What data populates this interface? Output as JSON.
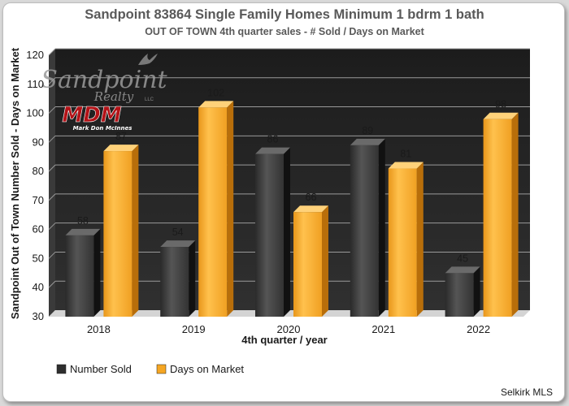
{
  "chart_data": {
    "type": "bar",
    "title": "Sandpoint 83864 Single Family Homes Minimum 1 bdrm 1 bath",
    "subtitle": "OUT OF TOWN 4th quarter sales - # Sold / Days on Market",
    "xlabel": "4th quarter / year",
    "ylabel": "Sandpoint Out of Town Number Sold - Days on Market",
    "categories": [
      "2018",
      "2019",
      "2020",
      "2021",
      "2022"
    ],
    "series": [
      {
        "name": "Number Sold",
        "values": [
          58,
          54,
          86,
          89,
          45
        ],
        "color": "#3a3a3a"
      },
      {
        "name": "Days on Market",
        "values": [
          87,
          102,
          66,
          81,
          98
        ],
        "color": "#f5a623"
      }
    ],
    "ylim": [
      30,
      120
    ],
    "yticks": [
      30,
      40,
      50,
      60,
      70,
      80,
      90,
      100,
      110,
      120
    ],
    "grid": true,
    "legend": "bottom-left",
    "source": "Selkirk MLS"
  },
  "watermark": {
    "logo_text": "Sandpoint",
    "logo_sub": "Realty",
    "logo_tm": "LLC",
    "mdm": "MDM",
    "mdm_name": "Mark Don McInnes"
  },
  "colors": {
    "plot_bg": "#242424",
    "wall_side": "#3a3a3a",
    "floor": "#d4d4d4",
    "gridline": "#9a9a9a",
    "accent": "#f5a623"
  }
}
